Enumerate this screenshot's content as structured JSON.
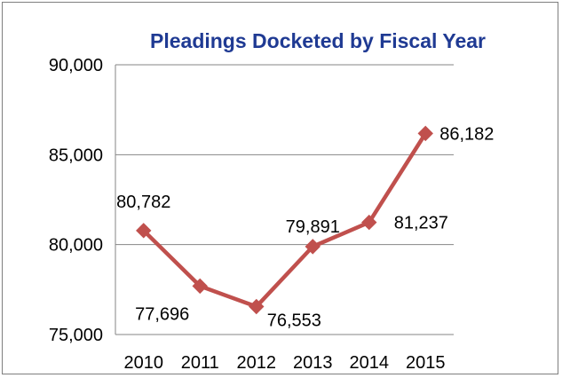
{
  "chart_data": {
    "type": "line",
    "title": "Pleadings Docketed by Fiscal Year",
    "xlabel": "",
    "ylabel": "",
    "categories": [
      "2010",
      "2011",
      "2012",
      "2013",
      "2014",
      "2015"
    ],
    "series": [
      {
        "values": [
          80782,
          77696,
          76553,
          79891,
          81237,
          86182
        ]
      }
    ],
    "data_labels": [
      "80,782",
      "77,696",
      "76,553",
      "79,891",
      "81,237",
      "86,182"
    ],
    "y_ticks": [
      "75,000",
      "80,000",
      "85,000",
      "90,000"
    ],
    "ylim": [
      75000,
      90000
    ],
    "grid": true,
    "legend": "none",
    "colors": {
      "title": "#1f3a93",
      "line": "#c0504d",
      "grid": "#868686",
      "axis": "#868686"
    }
  }
}
